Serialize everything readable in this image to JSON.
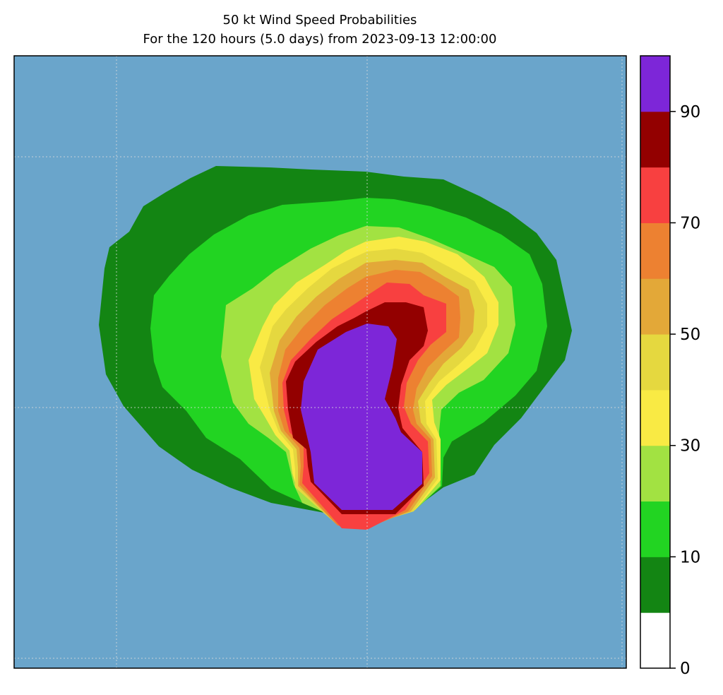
{
  "title": "50 kt Wind Speed Probabilities",
  "subtitle": "For the 120 hours (5.0 days) from 2023-09-13 12:00:00",
  "colors": {
    "ocean": "#6aa5cb",
    "levels": [
      "#ffffff",
      "#138513",
      "#22d422",
      "#a2e242",
      "#f9ea44",
      "#e5d83f",
      "#e3a838",
      "#ed8131",
      "#f84040",
      "#930000",
      "#7d26d8"
    ]
  },
  "colorbar": {
    "ticks": [
      "0",
      "10",
      "30",
      "50",
      "70",
      "90"
    ],
    "bounds": [
      0,
      5,
      10,
      20,
      30,
      40,
      50,
      60,
      70,
      80,
      90,
      100
    ]
  },
  "grid": {
    "visible": true,
    "style": "dotted"
  }
}
